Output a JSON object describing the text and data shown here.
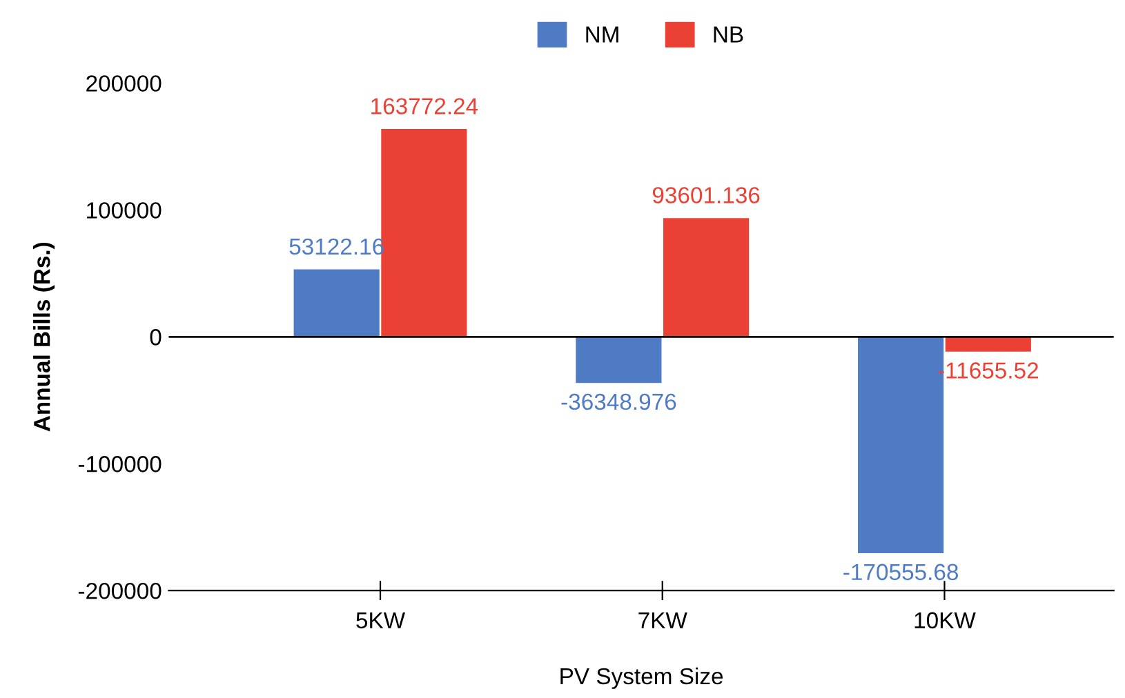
{
  "chart_data": {
    "type": "bar",
    "xlabel": "PV System Size",
    "ylabel": "Annual Bills (Rs.)",
    "categories": [
      "5KW",
      "7KW",
      "10KW"
    ],
    "series": [
      {
        "name": "NM",
        "color": "#4f7bc4",
        "values": [
          53122.16,
          -36348.976,
          -170555.68
        ]
      },
      {
        "name": "NB",
        "color": "#eb4034",
        "values": [
          163772.24,
          93601.136,
          -11655.52
        ]
      }
    ],
    "ylim": [
      -200000,
      200000
    ],
    "yticks": [
      -200000,
      -100000,
      0,
      100000,
      200000
    ],
    "grid": false,
    "ref_lines": [
      {
        "axis": "y",
        "value": 0,
        "color": "#000000"
      }
    ],
    "legend": "top",
    "data_labels": true
  }
}
